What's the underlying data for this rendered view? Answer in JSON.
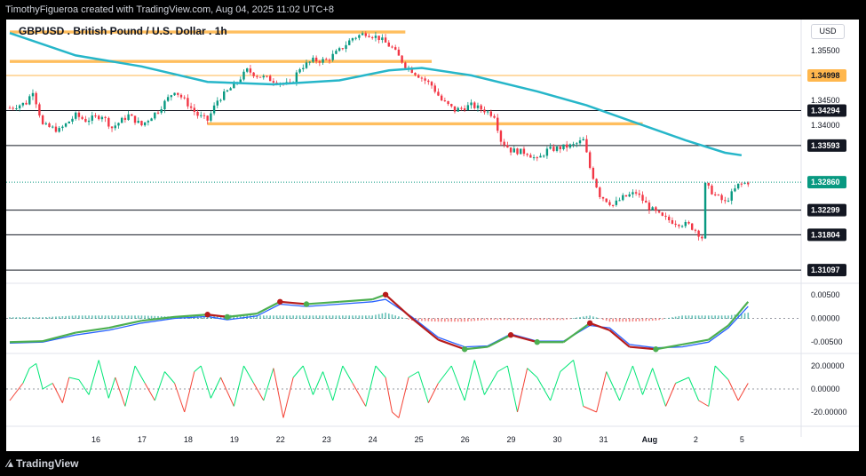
{
  "header": {
    "credit": "TimothyFigueroa created with TradingView.com, Aug 04, 2025 11:02 UTC+8"
  },
  "footer": {
    "brand": "TradingView"
  },
  "chart": {
    "symbol_title": "GBPUSD . British Pound / U.S. Dollar . 1h",
    "currency_button": "USD"
  },
  "colors": {
    "bull": "#089981",
    "bear": "#f23645",
    "ma": "#26b6c9",
    "zone": "#ffb74d",
    "hline": "#131722",
    "wt_green": "#4caf50",
    "wt_red": "#b71c1c",
    "wt_blue": "#2962ff",
    "rsi_green": "#00e676",
    "rsi_red": "#f44336"
  },
  "chart_data": [
    {
      "type": "candlestick",
      "title": "GBPUSD . British Pound / U.S. Dollar . 1h",
      "xlabel": "",
      "ylabel": "",
      "ylim": [
        1.3085,
        1.3612
      ],
      "x_ticks": [
        "16",
        "17",
        "18",
        "19",
        "22",
        "23",
        "24",
        "25",
        "26",
        "29",
        "30",
        "31",
        "Aug",
        "2",
        "5"
      ],
      "y_ticks": [
        "1.35500",
        "1.34500",
        "1.34000"
      ],
      "anchors": [
        [
          0,
          1.3435
        ],
        [
          5,
          1.3445
        ],
        [
          7,
          1.347
        ],
        [
          10,
          1.34
        ],
        [
          15,
          1.339
        ],
        [
          20,
          1.342
        ],
        [
          23,
          1.341
        ],
        [
          28,
          1.342
        ],
        [
          31,
          1.3395
        ],
        [
          36,
          1.342
        ],
        [
          40,
          1.34
        ],
        [
          45,
          1.343
        ],
        [
          50,
          1.347
        ],
        [
          53,
          1.345
        ],
        [
          57,
          1.342
        ],
        [
          60,
          1.341
        ],
        [
          63,
          1.345
        ],
        [
          68,
          1.348
        ],
        [
          72,
          1.351
        ],
        [
          75,
          1.35
        ],
        [
          80,
          1.349
        ],
        [
          85,
          1.348
        ],
        [
          88,
          1.3515
        ],
        [
          92,
          1.353
        ],
        [
          96,
          1.353
        ],
        [
          100,
          1.355
        ],
        [
          104,
          1.3575
        ],
        [
          108,
          1.3585
        ],
        [
          112,
          1.3575
        ],
        [
          116,
          1.3555
        ],
        [
          120,
          1.352
        ],
        [
          124,
          1.35
        ],
        [
          128,
          1.348
        ],
        [
          131,
          1.345
        ],
        [
          135,
          1.343
        ],
        [
          140,
          1.344
        ],
        [
          144,
          1.343
        ],
        [
          147,
          1.342
        ],
        [
          149,
          1.337
        ],
        [
          152,
          1.335
        ],
        [
          157,
          1.3345
        ],
        [
          160,
          1.333
        ],
        [
          163,
          1.335
        ],
        [
          167,
          1.3355
        ],
        [
          171,
          1.336
        ],
        [
          174,
          1.337
        ],
        [
          176,
          1.3315
        ],
        [
          179,
          1.326
        ],
        [
          183,
          1.324
        ],
        [
          186,
          1.3255
        ],
        [
          190,
          1.3265
        ],
        [
          194,
          1.3235
        ],
        [
          198,
          1.3215
        ],
        [
          202,
          1.3205
        ],
        [
          206,
          1.32
        ],
        [
          208,
          1.319
        ],
        [
          210,
          1.3175
        ],
        [
          211,
          1.328
        ],
        [
          214,
          1.326
        ],
        [
          217,
          1.3245
        ],
        [
          221,
          1.328
        ],
        [
          224,
          1.3286
        ]
      ],
      "horizontal_levels": [
        "1.34998",
        "1.34294",
        "1.33593",
        "1.32299",
        "1.31804",
        "1.31097"
      ],
      "last_price": "1.32860",
      "zones": [
        {
          "from": 1.3584,
          "to": 1.359,
          "x0": 0,
          "x1": 120
        },
        {
          "from": 1.3525,
          "to": 1.3531,
          "x0": 0,
          "x1": 128
        },
        {
          "from": 1.34,
          "to": 1.3406,
          "x0": 60,
          "x1": 192
        }
      ],
      "moving_average": {
        "name": "",
        "points": [
          [
            0,
            1.3585
          ],
          [
            20,
            1.354
          ],
          [
            40,
            1.3518
          ],
          [
            60,
            1.3487
          ],
          [
            80,
            1.3482
          ],
          [
            100,
            1.349
          ],
          [
            115,
            1.351
          ],
          [
            125,
            1.3515
          ],
          [
            140,
            1.35
          ],
          [
            160,
            1.3468
          ],
          [
            175,
            1.344
          ],
          [
            190,
            1.3405
          ],
          [
            205,
            1.337
          ],
          [
            217,
            1.3345
          ],
          [
            222,
            1.334
          ]
        ]
      }
    },
    {
      "type": "line",
      "title": "",
      "xlabel": "",
      "ylabel": "",
      "ylim": [
        -0.0072,
        0.0072
      ],
      "y_ticks": [
        "0.00500",
        "0.00000",
        "-0.00500"
      ],
      "series": [
        {
          "points": [
            [
              0,
              -0.005
            ],
            [
              10,
              -0.0048
            ],
            [
              20,
              -0.003
            ],
            [
              30,
              -0.002
            ],
            [
              40,
              -0.0005
            ],
            [
              50,
              0.0003
            ],
            [
              60,
              0.0008
            ],
            [
              66,
              0.0003
            ],
            [
              75,
              0.001
            ],
            [
              82,
              0.0035
            ],
            [
              90,
              0.003
            ],
            [
              100,
              0.0035
            ],
            [
              110,
              0.004
            ],
            [
              114,
              0.005
            ],
            [
              122,
              0.0
            ],
            [
              130,
              -0.0045
            ],
            [
              138,
              -0.0065
            ],
            [
              145,
              -0.006
            ],
            [
              152,
              -0.0035
            ],
            [
              160,
              -0.005
            ],
            [
              168,
              -0.005
            ],
            [
              176,
              -0.001
            ],
            [
              182,
              -0.0025
            ],
            [
              188,
              -0.006
            ],
            [
              196,
              -0.0065
            ],
            [
              204,
              -0.0055
            ],
            [
              212,
              -0.0045
            ],
            [
              218,
              -0.0015
            ],
            [
              224,
              0.0035
            ]
          ]
        },
        {
          "points": [
            [
              0,
              -0.0052
            ],
            [
              10,
              -0.005
            ],
            [
              20,
              -0.0035
            ],
            [
              30,
              -0.0025
            ],
            [
              40,
              -0.001
            ],
            [
              50,
              0.0
            ],
            [
              60,
              0.0004
            ],
            [
              66,
              -0.0003
            ],
            [
              75,
              0.0005
            ],
            [
              82,
              0.003
            ],
            [
              90,
              0.0025
            ],
            [
              100,
              0.003
            ],
            [
              110,
              0.0035
            ],
            [
              114,
              0.004
            ],
            [
              122,
              0.0003
            ],
            [
              130,
              -0.004
            ],
            [
              138,
              -0.006
            ],
            [
              145,
              -0.0058
            ],
            [
              152,
              -0.0033
            ],
            [
              160,
              -0.0048
            ],
            [
              168,
              -0.0048
            ],
            [
              176,
              -0.0015
            ],
            [
              182,
              -0.002
            ],
            [
              188,
              -0.0055
            ],
            [
              196,
              -0.0062
            ],
            [
              204,
              -0.006
            ],
            [
              212,
              -0.005
            ],
            [
              218,
              -0.002
            ],
            [
              224,
              0.0025
            ]
          ]
        }
      ]
    },
    {
      "type": "line",
      "title": "",
      "xlabel": "",
      "ylabel": "",
      "ylim": [
        -30,
        30
      ],
      "y_ticks": [
        "20.00000",
        "0.00000",
        "-20.00000"
      ],
      "series": [
        {
          "points": [
            [
              0,
              -10
            ],
            [
              4,
              5
            ],
            [
              6,
              18
            ],
            [
              8,
              22
            ],
            [
              10,
              0
            ],
            [
              13,
              5
            ],
            [
              16,
              -12
            ],
            [
              18,
              10
            ],
            [
              21,
              8
            ],
            [
              24,
              -5
            ],
            [
              27,
              25
            ],
            [
              30,
              -8
            ],
            [
              32,
              10
            ],
            [
              35,
              -15
            ],
            [
              38,
              20
            ],
            [
              41,
              5
            ],
            [
              44,
              -10
            ],
            [
              47,
              15
            ],
            [
              50,
              5
            ],
            [
              53,
              -20
            ],
            [
              56,
              15
            ],
            [
              58,
              20
            ],
            [
              61,
              -8
            ],
            [
              64,
              10
            ],
            [
              68,
              -15
            ],
            [
              71,
              20
            ],
            [
              74,
              5
            ],
            [
              77,
              -10
            ],
            [
              80,
              18
            ],
            [
              83,
              -25
            ],
            [
              86,
              10
            ],
            [
              89,
              20
            ],
            [
              92,
              -5
            ],
            [
              95,
              15
            ],
            [
              98,
              -10
            ],
            [
              101,
              20
            ],
            [
              104,
              5
            ],
            [
              108,
              -15
            ],
            [
              111,
              20
            ],
            [
              114,
              10
            ],
            [
              116,
              -20
            ],
            [
              118,
              -25
            ],
            [
              121,
              10
            ],
            [
              124,
              15
            ],
            [
              127,
              -12
            ],
            [
              130,
              5
            ],
            [
              134,
              20
            ],
            [
              138,
              -10
            ],
            [
              141,
              25
            ],
            [
              144,
              -5
            ],
            [
              148,
              15
            ],
            [
              151,
              20
            ],
            [
              154,
              -20
            ],
            [
              157,
              18
            ],
            [
              160,
              10
            ],
            [
              164,
              -10
            ],
            [
              167,
              15
            ],
            [
              171,
              25
            ],
            [
              174,
              -15
            ],
            [
              178,
              -20
            ],
            [
              181,
              15
            ],
            [
              185,
              -10
            ],
            [
              189,
              20
            ],
            [
              192,
              -5
            ],
            [
              195,
              18
            ],
            [
              199,
              -15
            ],
            [
              202,
              5
            ],
            [
              206,
              10
            ],
            [
              209,
              -10
            ],
            [
              212,
              -15
            ],
            [
              214,
              20
            ],
            [
              218,
              8
            ],
            [
              221,
              -10
            ],
            [
              224,
              5
            ]
          ]
        }
      ]
    }
  ]
}
